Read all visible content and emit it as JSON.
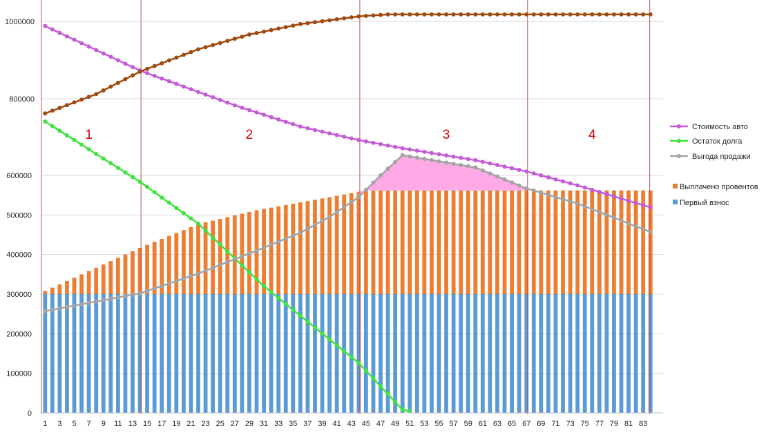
{
  "chart_data": {
    "type": "bar",
    "x": {
      "min": 1,
      "max": 84,
      "tick_labels": [
        1,
        3,
        5,
        7,
        9,
        11,
        13,
        15,
        17,
        19,
        21,
        23,
        25,
        27,
        29,
        31,
        33,
        35,
        37,
        39,
        41,
        43,
        45,
        47,
        49,
        51,
        53,
        55,
        57,
        59,
        61,
        63,
        65,
        67,
        69,
        71,
        73,
        75,
        77,
        79,
        81,
        83
      ]
    },
    "y_lower": {
      "range": [
        0,
        600000
      ],
      "ticks": [
        0,
        100000,
        200000,
        300000,
        400000,
        500000,
        600000
      ]
    },
    "y_upper": {
      "range": [
        700000,
        1030000
      ],
      "ticks": [
        800000,
        1000000
      ]
    },
    "series": [
      {
        "name": "Первый взнос",
        "kind": "bar",
        "color": "#5b9bd5",
        "rule": "constant",
        "value": 300000,
        "from": 1,
        "to": 84
      },
      {
        "name": "Выплачено провентов",
        "kind": "bar",
        "color": "#ed7d31",
        "rule": "stacked-total",
        "points": [
          [
            1,
            308000
          ],
          [
            14,
            417000
          ],
          [
            22,
            477000
          ],
          [
            30,
            512000
          ],
          [
            40,
            545000
          ],
          [
            45,
            562000
          ],
          [
            84,
            562000
          ]
        ]
      },
      {
        "name": "Стоимость авто",
        "kind": "line",
        "axis": "upper",
        "color": "#c55ad8",
        "points": [
          [
            1,
            988000
          ],
          [
            14,
            873000
          ],
          [
            27,
            783000
          ],
          [
            36,
            728000
          ],
          [
            44,
            693000
          ],
          [
            50,
            672000
          ],
          [
            60,
            641000
          ],
          [
            67,
            612000
          ],
          [
            74,
            576000
          ],
          [
            84,
            519000
          ]
        ]
      },
      {
        "name": "Остаток долга",
        "kind": "line",
        "color": "#3ee33e",
        "points": [
          [
            1,
            736000
          ],
          [
            14,
            584000
          ],
          [
            22,
            478000
          ],
          [
            31,
            320000
          ],
          [
            44,
            126000
          ],
          [
            50,
            8000
          ],
          [
            51,
            4000
          ]
        ]
      },
      {
        "name": "Выгода продажи",
        "kind": "line",
        "color": "#a3a3a3",
        "points": [
          [
            1,
            257000
          ],
          [
            14,
            302000
          ],
          [
            22,
            352000
          ],
          [
            30,
            410000
          ],
          [
            36,
            455000
          ],
          [
            40,
            495000
          ],
          [
            44,
            545000
          ],
          [
            47,
            600000
          ],
          [
            50,
            651000
          ],
          [
            60,
            620000
          ],
          [
            67,
            567000
          ],
          [
            74,
            529000
          ],
          [
            84,
            457000
          ]
        ]
      },
      {
        "name": "",
        "kind": "line",
        "axis": "upper",
        "color": "#a04a10",
        "points": [
          [
            1,
            762000
          ],
          [
            8,
            812000
          ],
          [
            14,
            870000
          ],
          [
            22,
            928000
          ],
          [
            29,
            966000
          ],
          [
            36,
            993000
          ],
          [
            44,
            1013000
          ],
          [
            48,
            1018000
          ],
          [
            84,
            1018000
          ]
        ]
      }
    ],
    "shaded_region": {
      "from": 44,
      "to": 67,
      "between": [
        "Выгода продажи",
        "Выплачено провентов"
      ],
      "color": "#ffaae6"
    },
    "zones": [
      {
        "label": "1",
        "x": 7
      },
      {
        "label": "2",
        "x": 29
      },
      {
        "label": "3",
        "x": 56
      },
      {
        "label": "4",
        "x": 76
      }
    ],
    "boundaries": [
      1,
      14,
      44,
      67,
      84
    ],
    "legend": {
      "position": "right",
      "items": [
        {
          "name": "Стоимость авто",
          "color": "#c55ad8",
          "kind": "line"
        },
        {
          "name": "Остаток долга",
          "color": "#3ee33e",
          "kind": "line"
        },
        {
          "name": "Выгода продажи",
          "color": "#a3a3a3",
          "kind": "line"
        },
        {
          "name": "Выплачено провентов",
          "color": "#ed7d31",
          "kind": "bar"
        },
        {
          "name": "Первый взнос",
          "color": "#5b9bd5",
          "kind": "bar"
        }
      ]
    },
    "grid": true
  }
}
